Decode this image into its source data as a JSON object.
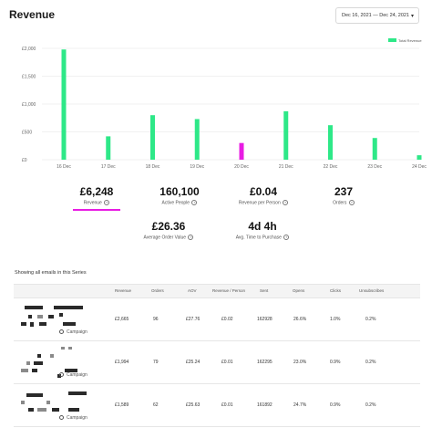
{
  "header": {
    "title": "Revenue",
    "date_range": "Dec 16, 2021 — Dec 24, 2021"
  },
  "chart_data": {
    "type": "bar",
    "title": "",
    "legend": "Total Revenue",
    "legend_position": "top-right",
    "categories": [
      "16 Dec",
      "17 Dec",
      "18 Dec",
      "19 Dec",
      "20 Dec",
      "21 Dec",
      "22 Dec",
      "23 Dec",
      "24 Dec"
    ],
    "values": [
      1980,
      420,
      800,
      730,
      300,
      870,
      620,
      390,
      80
    ],
    "highlight_index": 4,
    "y_ticks": [
      "£2,000",
      "£1,500",
      "£1,000",
      "£500",
      "£0"
    ],
    "y_tick_values": [
      2000,
      1500,
      1000,
      500,
      0
    ],
    "ylim": [
      0,
      2000
    ],
    "colors": {
      "bar": "#2ee888",
      "highlight": "#e81ce3",
      "grid": "#ececec"
    }
  },
  "kpis": [
    {
      "value": "£6,248",
      "label": "Revenue"
    },
    {
      "value": "160,100",
      "label": "Active People"
    },
    {
      "value": "£0.04",
      "label": "Revenue per Person"
    },
    {
      "value": "237",
      "label": "Orders"
    },
    {
      "value": "£26.36",
      "label": "Average Order Value"
    },
    {
      "value": "4d 4h",
      "label": "Avg. Time to Purchase"
    }
  ],
  "section_label": "Showing all emails in this Series",
  "table": {
    "headers": [
      "Revenue",
      "Orders",
      "AOV",
      "Revenue / Person",
      "Sent",
      "Opens",
      "Clicks",
      "Unsubscribes"
    ],
    "rows": [
      {
        "type": "Campaign",
        "cells": [
          "£2,665",
          "96",
          "£27.76",
          "£0.02",
          "162928",
          "26.6%",
          "1.0%",
          "0.2%"
        ]
      },
      {
        "type": "Campaign",
        "cells": [
          "£1,994",
          "79",
          "£25.24",
          "£0.01",
          "162295",
          "23.0%",
          "0.9%",
          "0.2%"
        ]
      },
      {
        "type": "Campaign",
        "cells": [
          "£1,589",
          "62",
          "£25.63",
          "£0.01",
          "161892",
          "24.7%",
          "0.9%",
          "0.2%"
        ]
      }
    ]
  }
}
